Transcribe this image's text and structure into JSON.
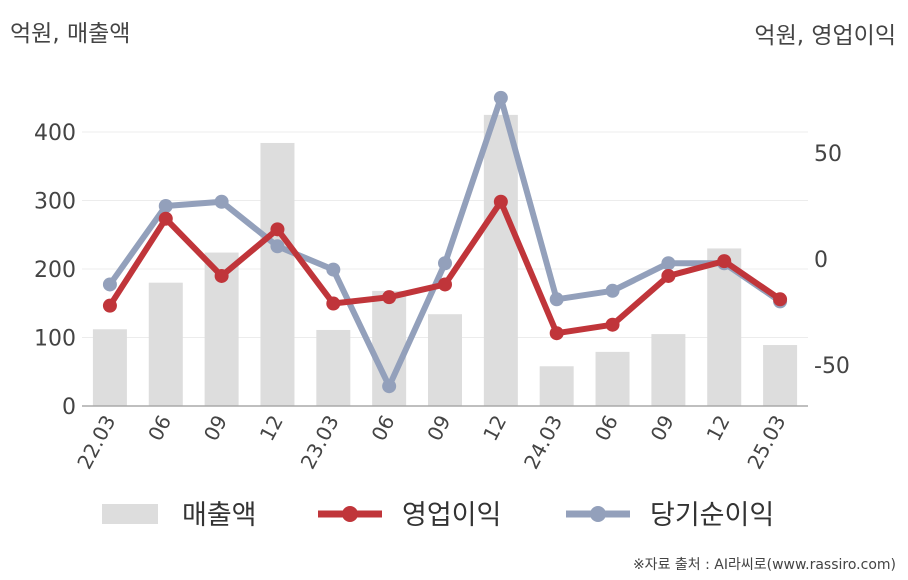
{
  "header": {
    "left_unit": "억원, 매출액",
    "right_unit": "억원, 영업이익"
  },
  "source": "※자료 출처 : AI라씨로(www.rassiro.com)",
  "chart_data": {
    "type": "bar+line",
    "categories": [
      "22.03",
      "06",
      "09",
      "12",
      "23.03",
      "06",
      "09",
      "12",
      "24.03",
      "06",
      "09",
      "12",
      "25.03"
    ],
    "series": [
      {
        "name": "매출액",
        "type": "bar",
        "axis": "left",
        "color": "#dddddd",
        "values": [
          112,
          180,
          224,
          384,
          111,
          168,
          134,
          425,
          58,
          79,
          105,
          230,
          89
        ]
      },
      {
        "name": "영업이익",
        "type": "line",
        "axis": "right",
        "color": "#c0353a",
        "values": [
          -22,
          19,
          -8,
          14,
          -21,
          -18,
          -12,
          27,
          -35,
          -31,
          -8,
          -1,
          -19
        ]
      },
      {
        "name": "당기순이익",
        "type": "line",
        "axis": "right",
        "color": "#93a0bb",
        "values": [
          -12,
          25,
          27,
          6,
          -5,
          -60,
          -2,
          76,
          -19,
          -15,
          -2,
          -2,
          -20
        ]
      }
    ],
    "left_axis": {
      "ticks": [
        0,
        100,
        200,
        300,
        400
      ],
      "range": [
        0,
        440
      ]
    },
    "right_axis": {
      "ticks": [
        50,
        0,
        -50
      ],
      "range": [
        -70,
        85
      ]
    },
    "grid": true,
    "legend": "bottom"
  }
}
